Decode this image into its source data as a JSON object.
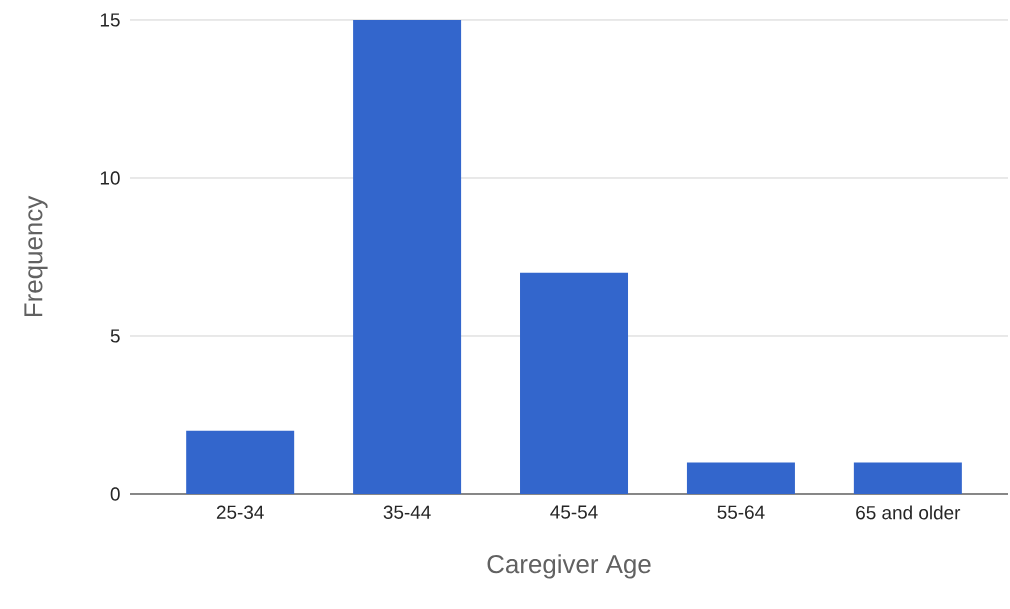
{
  "chart_data": {
    "type": "bar",
    "xlabel": "Caregiver Age",
    "ylabel": "Frequency",
    "categories": [
      "25-34",
      "35-44",
      "45-54",
      "55-64",
      "65 and older"
    ],
    "values": [
      2,
      15,
      7,
      1,
      1
    ],
    "color": "#3366cc",
    "ylim": [
      0,
      15
    ],
    "yticks": [
      0,
      5,
      10,
      15
    ],
    "grid": "y"
  }
}
